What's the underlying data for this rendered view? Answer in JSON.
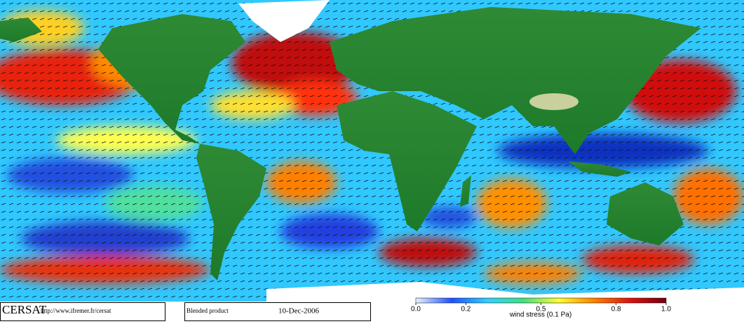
{
  "logo": "CERSAT",
  "url": "http://www.ifremer.fr/cersat",
  "product": "Blended product",
  "date": "10-Dec-2006",
  "colorbar": {
    "label": "wind stress (0.1 Pa)",
    "lim": [
      0,
      1
    ],
    "ticks": [
      {
        "value": 0,
        "label": "0.0"
      },
      0.2,
      0.5,
      0.8,
      {
        "value": 1,
        "label": "1.0"
      }
    ],
    "colors": [
      "#e8f4ff",
      "#2050ff",
      "#30d0ff",
      "#40e080",
      "#ffff30",
      "#ff8000",
      "#e01010",
      "#700010"
    ]
  }
}
